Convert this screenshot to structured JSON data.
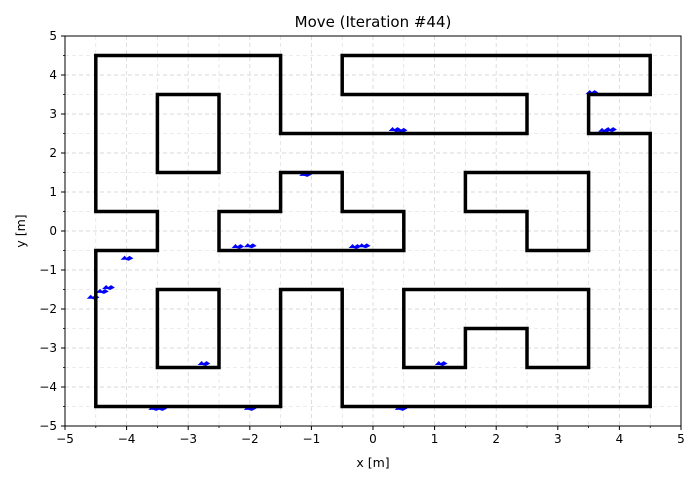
{
  "chart_data": {
    "type": "line",
    "title": "Move (Iteration #44)",
    "xlabel": "x [m]",
    "ylabel": "y [m]",
    "xlim": [
      -5,
      5
    ],
    "ylim": [
      -5,
      5
    ],
    "grid": true,
    "x_ticks": [
      -5,
      -4,
      -3,
      -2,
      -1,
      0,
      1,
      2,
      3,
      4,
      5
    ],
    "y_ticks": [
      -5,
      -4,
      -3,
      -2,
      -1,
      0,
      1,
      2,
      3,
      4,
      5
    ],
    "x_tick_labels": [
      "−5",
      "−4",
      "−3",
      "−2",
      "−1",
      "0",
      "1",
      "2",
      "3",
      "4",
      "5"
    ],
    "y_tick_labels": [
      "−5",
      "−4",
      "−3",
      "−2",
      "−1",
      "0",
      "1",
      "2",
      "3",
      "4",
      "5"
    ],
    "colors": {
      "walls": "#000000",
      "particles": "#0000ff",
      "grid": "#d9d9d9"
    },
    "series": [
      {
        "kind": "walls",
        "polylines": [
          [
            [
              -4.5,
              4.5
            ],
            [
              -1.5,
              4.5
            ],
            [
              -1.5,
              2.5
            ],
            [
              2.5,
              2.5
            ],
            [
              2.5,
              3.5
            ],
            [
              -0.5,
              3.5
            ],
            [
              -0.5,
              4.5
            ],
            [
              4.5,
              4.5
            ],
            [
              4.5,
              3.5
            ],
            [
              3.5,
              3.5
            ],
            [
              3.5,
              2.5
            ],
            [
              4.5,
              2.5
            ],
            [
              4.5,
              -4.5
            ],
            [
              -0.5,
              -4.5
            ],
            [
              -0.5,
              -1.5
            ],
            [
              -1.5,
              -1.5
            ],
            [
              -1.5,
              -4.5
            ],
            [
              -4.5,
              -4.5
            ],
            [
              -4.5,
              -0.5
            ],
            [
              -3.5,
              -0.5
            ],
            [
              -3.5,
              0.5
            ],
            [
              -4.5,
              0.5
            ],
            [
              -4.5,
              4.5
            ]
          ],
          [
            [
              -3.5,
              3.5
            ],
            [
              -2.5,
              3.5
            ],
            [
              -2.5,
              1.5
            ],
            [
              -3.5,
              1.5
            ],
            [
              -3.5,
              3.5
            ]
          ],
          [
            [
              -2.5,
              -0.5
            ],
            [
              0.5,
              -0.5
            ],
            [
              0.5,
              0.5
            ],
            [
              -0.5,
              0.5
            ],
            [
              -0.5,
              1.5
            ],
            [
              -1.5,
              1.5
            ],
            [
              -1.5,
              0.5
            ],
            [
              -2.5,
              0.5
            ],
            [
              -2.5,
              -0.5
            ]
          ],
          [
            [
              1.5,
              1.5
            ],
            [
              3.5,
              1.5
            ],
            [
              3.5,
              -0.5
            ],
            [
              2.5,
              -0.5
            ],
            [
              2.5,
              0.5
            ],
            [
              1.5,
              0.5
            ],
            [
              1.5,
              1.5
            ]
          ],
          [
            [
              -3.5,
              -1.5
            ],
            [
              -2.5,
              -1.5
            ],
            [
              -2.5,
              -3.5
            ],
            [
              -3.5,
              -3.5
            ],
            [
              -3.5,
              -1.5
            ]
          ],
          [
            [
              0.5,
              -1.5
            ],
            [
              3.5,
              -1.5
            ],
            [
              3.5,
              -3.5
            ],
            [
              2.5,
              -3.5
            ],
            [
              2.5,
              -2.5
            ],
            [
              1.5,
              -2.5
            ],
            [
              1.5,
              -3.5
            ],
            [
              0.5,
              -3.5
            ],
            [
              0.5,
              -1.5
            ]
          ]
        ]
      },
      {
        "kind": "particles",
        "points": [
          [
            0.35,
            2.6
          ],
          [
            0.45,
            2.58
          ],
          [
            3.85,
            2.6
          ],
          [
            3.75,
            2.58
          ],
          [
            3.55,
            3.55
          ],
          [
            -2.2,
            -0.4
          ],
          [
            -2.0,
            -0.38
          ],
          [
            -0.3,
            -0.4
          ],
          [
            -0.15,
            -0.38
          ],
          [
            -4.0,
            -0.7
          ],
          [
            -4.55,
            -1.7
          ],
          [
            -4.4,
            -1.55
          ],
          [
            -4.3,
            -1.45
          ],
          [
            -3.55,
            -4.55
          ],
          [
            -3.45,
            -4.55
          ],
          [
            -2.75,
            -3.4
          ],
          [
            -2.0,
            -4.55
          ],
          [
            0.45,
            -4.55
          ],
          [
            1.1,
            -3.4
          ],
          [
            -1.1,
            1.45
          ]
        ]
      }
    ]
  }
}
